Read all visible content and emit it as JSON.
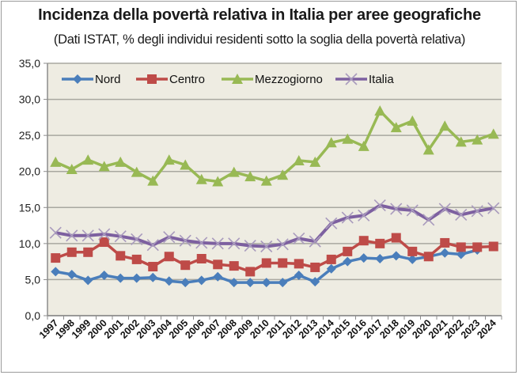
{
  "chart_data": {
    "type": "line",
    "title": "Incidenza della povertà relativa in Italia per aree geografiche",
    "subtitle": "(Dati ISTAT, % degli individui residenti sotto la soglia della povertà relativa)",
    "xlabel": "",
    "ylabel": "",
    "ylim": [
      0,
      35
    ],
    "yticks": [
      "0,0",
      "5,0",
      "10,0",
      "15,0",
      "20,0",
      "25,0",
      "30,0",
      "35,0"
    ],
    "ytick_values": [
      0,
      5,
      10,
      15,
      20,
      25,
      30,
      35
    ],
    "grid": true,
    "legend_position": "top",
    "categories": [
      "1997",
      "1998",
      "1999",
      "2000",
      "2001",
      "2002",
      "2003",
      "2004",
      "2005",
      "2006",
      "2007",
      "2008",
      "2009",
      "2010",
      "2011",
      "2012",
      "2013",
      "2014",
      "2015",
      "2016",
      "2017",
      "2018",
      "2019",
      "2020",
      "2021",
      "2022",
      "2023",
      "2024"
    ],
    "series": [
      {
        "name": "Nord",
        "color": "#4a7ebb",
        "marker": "diamond",
        "values": [
          6.1,
          5.7,
          4.9,
          5.6,
          5.2,
          5.2,
          5.3,
          4.8,
          4.6,
          4.9,
          5.4,
          4.6,
          4.6,
          4.6,
          4.6,
          5.6,
          4.7,
          6.5,
          7.5,
          8.0,
          7.9,
          8.3,
          7.8,
          8.2,
          8.7,
          8.5,
          9.1,
          null
        ]
      },
      {
        "name": "Centro",
        "color": "#be4b48",
        "marker": "square",
        "values": [
          8.0,
          8.8,
          8.8,
          10.2,
          8.3,
          7.8,
          6.8,
          8.2,
          7.0,
          7.9,
          7.1,
          6.9,
          6.1,
          7.3,
          7.3,
          7.2,
          6.7,
          7.8,
          8.9,
          10.4,
          10.0,
          10.8,
          8.9,
          8.2,
          10.1,
          9.5,
          9.5,
          9.6
        ]
      },
      {
        "name": "Mezzogiorno",
        "color": "#98b954",
        "marker": "triangle",
        "values": [
          21.3,
          20.3,
          21.6,
          20.7,
          21.3,
          19.9,
          18.7,
          21.6,
          20.9,
          18.9,
          18.6,
          19.9,
          19.3,
          18.7,
          19.5,
          21.5,
          21.3,
          24.0,
          24.5,
          23.5,
          28.4,
          26.1,
          27.0,
          23.0,
          26.3,
          24.1,
          24.4,
          25.2
        ]
      },
      {
        "name": "Italia",
        "color": "#7d60a0",
        "marker": "x",
        "values": [
          11.5,
          11.1,
          11.1,
          11.3,
          11.0,
          10.6,
          9.8,
          10.9,
          10.4,
          10.1,
          10.0,
          10.0,
          9.7,
          9.6,
          9.9,
          10.7,
          10.3,
          12.8,
          13.6,
          13.9,
          15.3,
          14.8,
          14.6,
          13.3,
          14.8,
          14.0,
          14.5,
          14.9
        ]
      }
    ]
  }
}
